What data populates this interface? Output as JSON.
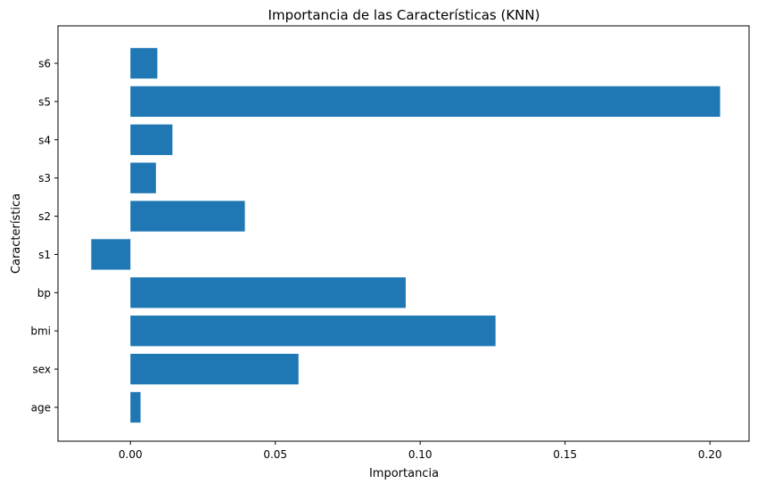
{
  "chart_data": {
    "type": "bar",
    "orientation": "horizontal",
    "title": "Importancia de las Características (KNN)",
    "xlabel": "Importancia",
    "ylabel": "Característica",
    "categories": [
      "age",
      "sex",
      "bmi",
      "bp",
      "s1",
      "s2",
      "s3",
      "s4",
      "s5",
      "s6"
    ],
    "values": [
      0.0035,
      0.058,
      0.126,
      0.095,
      -0.0135,
      0.0395,
      0.0088,
      0.0145,
      0.2035,
      0.0093
    ],
    "xlim": [
      -0.025,
      0.2135
    ],
    "xticks": [
      0.0,
      0.05,
      0.1,
      0.15,
      0.2
    ],
    "xtick_labels": [
      "0.00",
      "0.05",
      "0.10",
      "0.15",
      "0.20"
    ],
    "grid": false,
    "bar_color": "#1f77b4"
  }
}
